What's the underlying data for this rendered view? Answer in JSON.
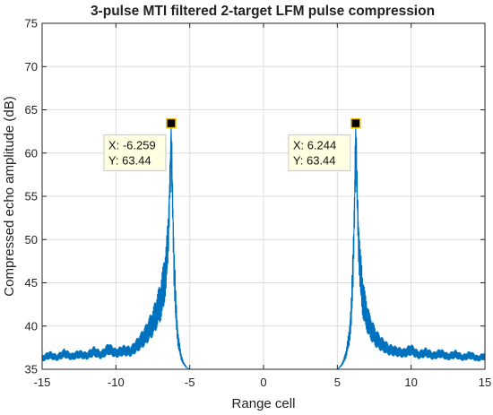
{
  "chart_data": {
    "type": "line",
    "title": "3-pulse MTI filtered 2-target LFM pulse compression",
    "xlabel": "Range cell",
    "ylabel": "Compressed echo amplitude (dB)",
    "xlim": [
      -15,
      15
    ],
    "ylim": [
      35,
      75
    ],
    "xticks": [
      "-15",
      "-10",
      "-5",
      "0",
      "5",
      "10",
      "15"
    ],
    "yticks": [
      "35",
      "40",
      "45",
      "50",
      "55",
      "60",
      "65",
      "70",
      "75"
    ],
    "grid": true,
    "line_color": "#0072BD",
    "series": [
      {
        "x": [
          -15,
          -14.5,
          -14,
          -13.5,
          -13,
          -12.5,
          -12,
          -11.5,
          -11,
          -10.5,
          -10,
          -9.5,
          -9,
          -8.5,
          -8,
          -7.5,
          -7,
          -6.8,
          -6.6,
          -6.45,
          -6.35,
          -6.259,
          -6.17,
          -6.07,
          -5.95,
          -5.8,
          -5.6,
          -5.4,
          -5.2,
          -5,
          0,
          5,
          5.2,
          5.4,
          5.6,
          5.8,
          5.95,
          6.07,
          6.17,
          6.244,
          6.33,
          6.43,
          6.55,
          6.7,
          6.9,
          7.2,
          7.6,
          8,
          8.5,
          9,
          9.5,
          10,
          10.5,
          11,
          11.5,
          12,
          12.5,
          13,
          13.5,
          14,
          14.5,
          15
        ],
        "y": [
          36.2,
          36.6,
          36.3,
          36.8,
          36.4,
          36.7,
          36.5,
          37,
          36.6,
          37.3,
          36.8,
          37.1,
          37,
          37.8,
          38.8,
          40.2,
          42.5,
          44,
          46.5,
          50,
          56,
          63.44,
          55,
          47,
          42,
          38.5,
          36.5,
          35.6,
          35.2,
          35,
          35,
          35,
          35.3,
          35.8,
          36.8,
          38.5,
          41.5,
          46.5,
          54,
          63.44,
          56,
          50,
          46,
          43.5,
          41.5,
          39.8,
          38.5,
          37.8,
          37.2,
          37,
          36.8,
          37.2,
          36.6,
          36.9,
          36.5,
          36.8,
          36.4,
          36.7,
          36.3,
          36.6,
          36.2,
          36.5
        ]
      }
    ],
    "datatips": [
      {
        "x_label": "X: -6.259",
        "y_label": "Y: 63.44",
        "x": -6.259,
        "y": 63.44
      },
      {
        "x_label": "X: 6.244",
        "y_label": "Y: 63.44",
        "x": 6.244,
        "y": 63.44
      }
    ]
  }
}
